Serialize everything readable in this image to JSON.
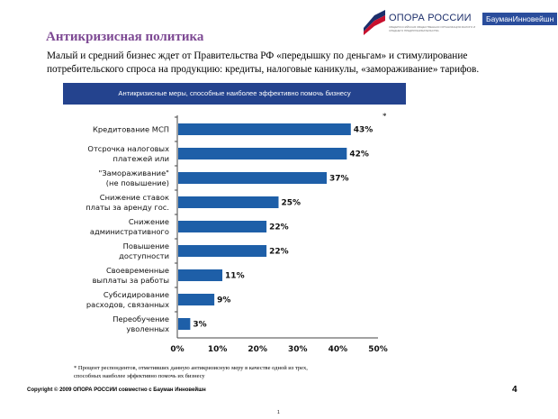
{
  "logo": {
    "name": "ОПОРА РОССИИ",
    "tagline": "ОБЩЕРОССИЙСКАЯ ОБЩЕСТВЕННАЯ ОРГАНИЗАЦИЯ МАЛОГО И СРЕДНЕГО ПРЕДПРИНИМАТЕЛЬСТВА",
    "partner": "БауманИнновейшн"
  },
  "slide": {
    "title": "Антикризисная политика",
    "subtitle": "Малый и средний бизнес ждет от Правительства РФ «передышку по деньгам» и стимулирование потребительского спроса на продукцию: кредиты, налоговые каникулы, «замораживание» тарифов.",
    "footnote": "* Процент респондентов, отметивших данную антикризисную меру в качестве одной из трех, способных наиболее эффективно помочь их бизнесу",
    "copyright": "Copyright © 2009 ОПОРА РОССИИ совместно с Бауман Инновейшн",
    "page_number": "4",
    "bottom_mark": "1"
  },
  "colors": {
    "title": "#7e4a94",
    "header": "#24438e",
    "bar": "#1e5fa8"
  },
  "chart_data": {
    "type": "bar",
    "orientation": "horizontal",
    "title": "Антикризисные меры, способные наиболее эффективно помочь бизнесу",
    "marker": "*",
    "categories": [
      [
        "Кредитование МСП"
      ],
      [
        "Отсрочка налоговых",
        "платежей или"
      ],
      [
        "\"Замораживание\"",
        "(не повышение)"
      ],
      [
        "Снижение ставок",
        "платы за аренду гос."
      ],
      [
        "Снижение",
        "административного"
      ],
      [
        "Повышение",
        "доступности"
      ],
      [
        "Своевременные",
        "выплаты за работы"
      ],
      [
        "Субсидирование",
        "расходов, связанных"
      ],
      [
        "Переобучение",
        "уволенных"
      ]
    ],
    "values": [
      43,
      42,
      37,
      25,
      22,
      22,
      11,
      9,
      3
    ],
    "data_labels": [
      "43%",
      "42%",
      "37%",
      "25%",
      "22%",
      "22%",
      "11%",
      "9%",
      "3%"
    ],
    "xlim": [
      0,
      50
    ],
    "x_ticks": [
      "0%",
      "10%",
      "20%",
      "30%",
      "40%",
      "50%"
    ],
    "grid": false
  }
}
